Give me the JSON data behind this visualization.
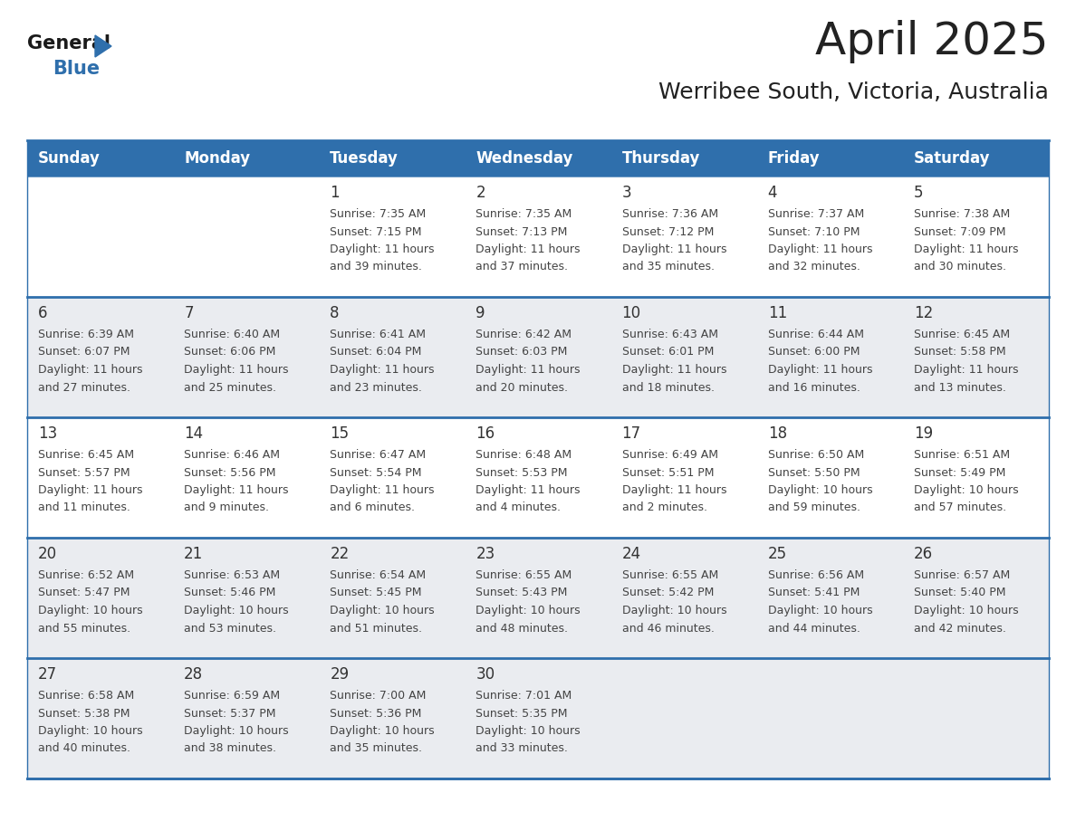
{
  "title": "April 2025",
  "subtitle": "Werribee South, Victoria, Australia",
  "days_of_week": [
    "Sunday",
    "Monday",
    "Tuesday",
    "Wednesday",
    "Thursday",
    "Friday",
    "Saturday"
  ],
  "header_bg_color": "#2F6FAC",
  "header_text_color": "#FFFFFF",
  "cell_bg_white": "#FFFFFF",
  "cell_bg_gray": "#EAECF0",
  "row_line_color": "#2F6FAC",
  "text_color": "#444444",
  "day_num_color": "#333333",
  "calendar_data": [
    [
      {
        "day": null,
        "sunrise": null,
        "sunset": null,
        "daylight_h": null,
        "daylight_m": null
      },
      {
        "day": null,
        "sunrise": null,
        "sunset": null,
        "daylight_h": null,
        "daylight_m": null
      },
      {
        "day": 1,
        "sunrise": "7:35 AM",
        "sunset": "7:15 PM",
        "daylight_h": "11 hours",
        "daylight_m": "and 39 minutes."
      },
      {
        "day": 2,
        "sunrise": "7:35 AM",
        "sunset": "7:13 PM",
        "daylight_h": "11 hours",
        "daylight_m": "and 37 minutes."
      },
      {
        "day": 3,
        "sunrise": "7:36 AM",
        "sunset": "7:12 PM",
        "daylight_h": "11 hours",
        "daylight_m": "and 35 minutes."
      },
      {
        "day": 4,
        "sunrise": "7:37 AM",
        "sunset": "7:10 PM",
        "daylight_h": "11 hours",
        "daylight_m": "and 32 minutes."
      },
      {
        "day": 5,
        "sunrise": "7:38 AM",
        "sunset": "7:09 PM",
        "daylight_h": "11 hours",
        "daylight_m": "and 30 minutes."
      }
    ],
    [
      {
        "day": 6,
        "sunrise": "6:39 AM",
        "sunset": "6:07 PM",
        "daylight_h": "11 hours",
        "daylight_m": "and 27 minutes."
      },
      {
        "day": 7,
        "sunrise": "6:40 AM",
        "sunset": "6:06 PM",
        "daylight_h": "11 hours",
        "daylight_m": "and 25 minutes."
      },
      {
        "day": 8,
        "sunrise": "6:41 AM",
        "sunset": "6:04 PM",
        "daylight_h": "11 hours",
        "daylight_m": "and 23 minutes."
      },
      {
        "day": 9,
        "sunrise": "6:42 AM",
        "sunset": "6:03 PM",
        "daylight_h": "11 hours",
        "daylight_m": "and 20 minutes."
      },
      {
        "day": 10,
        "sunrise": "6:43 AM",
        "sunset": "6:01 PM",
        "daylight_h": "11 hours",
        "daylight_m": "and 18 minutes."
      },
      {
        "day": 11,
        "sunrise": "6:44 AM",
        "sunset": "6:00 PM",
        "daylight_h": "11 hours",
        "daylight_m": "and 16 minutes."
      },
      {
        "day": 12,
        "sunrise": "6:45 AM",
        "sunset": "5:58 PM",
        "daylight_h": "11 hours",
        "daylight_m": "and 13 minutes."
      }
    ],
    [
      {
        "day": 13,
        "sunrise": "6:45 AM",
        "sunset": "5:57 PM",
        "daylight_h": "11 hours",
        "daylight_m": "and 11 minutes."
      },
      {
        "day": 14,
        "sunrise": "6:46 AM",
        "sunset": "5:56 PM",
        "daylight_h": "11 hours",
        "daylight_m": "and 9 minutes."
      },
      {
        "day": 15,
        "sunrise": "6:47 AM",
        "sunset": "5:54 PM",
        "daylight_h": "11 hours",
        "daylight_m": "and 6 minutes."
      },
      {
        "day": 16,
        "sunrise": "6:48 AM",
        "sunset": "5:53 PM",
        "daylight_h": "11 hours",
        "daylight_m": "and 4 minutes."
      },
      {
        "day": 17,
        "sunrise": "6:49 AM",
        "sunset": "5:51 PM",
        "daylight_h": "11 hours",
        "daylight_m": "and 2 minutes."
      },
      {
        "day": 18,
        "sunrise": "6:50 AM",
        "sunset": "5:50 PM",
        "daylight_h": "10 hours",
        "daylight_m": "and 59 minutes."
      },
      {
        "day": 19,
        "sunrise": "6:51 AM",
        "sunset": "5:49 PM",
        "daylight_h": "10 hours",
        "daylight_m": "and 57 minutes."
      }
    ],
    [
      {
        "day": 20,
        "sunrise": "6:52 AM",
        "sunset": "5:47 PM",
        "daylight_h": "10 hours",
        "daylight_m": "and 55 minutes."
      },
      {
        "day": 21,
        "sunrise": "6:53 AM",
        "sunset": "5:46 PM",
        "daylight_h": "10 hours",
        "daylight_m": "and 53 minutes."
      },
      {
        "day": 22,
        "sunrise": "6:54 AM",
        "sunset": "5:45 PM",
        "daylight_h": "10 hours",
        "daylight_m": "and 51 minutes."
      },
      {
        "day": 23,
        "sunrise": "6:55 AM",
        "sunset": "5:43 PM",
        "daylight_h": "10 hours",
        "daylight_m": "and 48 minutes."
      },
      {
        "day": 24,
        "sunrise": "6:55 AM",
        "sunset": "5:42 PM",
        "daylight_h": "10 hours",
        "daylight_m": "and 46 minutes."
      },
      {
        "day": 25,
        "sunrise": "6:56 AM",
        "sunset": "5:41 PM",
        "daylight_h": "10 hours",
        "daylight_m": "and 44 minutes."
      },
      {
        "day": 26,
        "sunrise": "6:57 AM",
        "sunset": "5:40 PM",
        "daylight_h": "10 hours",
        "daylight_m": "and 42 minutes."
      }
    ],
    [
      {
        "day": 27,
        "sunrise": "6:58 AM",
        "sunset": "5:38 PM",
        "daylight_h": "10 hours",
        "daylight_m": "and 40 minutes."
      },
      {
        "day": 28,
        "sunrise": "6:59 AM",
        "sunset": "5:37 PM",
        "daylight_h": "10 hours",
        "daylight_m": "and 38 minutes."
      },
      {
        "day": 29,
        "sunrise": "7:00 AM",
        "sunset": "5:36 PM",
        "daylight_h": "10 hours",
        "daylight_m": "and 35 minutes."
      },
      {
        "day": 30,
        "sunrise": "7:01 AM",
        "sunset": "5:35 PM",
        "daylight_h": "10 hours",
        "daylight_m": "and 33 minutes."
      },
      {
        "day": null,
        "sunrise": null,
        "sunset": null,
        "daylight_h": null,
        "daylight_m": null
      },
      {
        "day": null,
        "sunrise": null,
        "sunset": null,
        "daylight_h": null,
        "daylight_m": null
      },
      {
        "day": null,
        "sunrise": null,
        "sunset": null,
        "daylight_h": null,
        "daylight_m": null
      }
    ]
  ],
  "row_bg_colors": [
    "#FFFFFF",
    "#EAECF0",
    "#FFFFFF",
    "#EAECF0",
    "#EAECF0"
  ],
  "logo_color_general": "#1a1a1a",
  "logo_color_blue": "#2F6FAC",
  "logo_triangle_color": "#2F6FAC",
  "title_fontsize": 36,
  "subtitle_fontsize": 18,
  "header_fontsize": 12,
  "day_num_fontsize": 12,
  "cell_text_fontsize": 9
}
